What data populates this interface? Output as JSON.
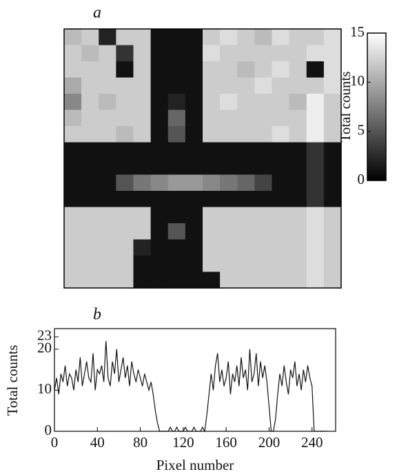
{
  "chart_data": [
    {
      "type": "heatmap",
      "title": "a",
      "colorbar_label": "Total counts",
      "colormap": "gray",
      "clim": [
        0,
        15
      ],
      "cticks": [
        0,
        5,
        10,
        15
      ],
      "z": [
        [
          11,
          12,
          2,
          12,
          12,
          1,
          1,
          1,
          12,
          13,
          12,
          11,
          13,
          12,
          12,
          13
        ],
        [
          12,
          11,
          12,
          3,
          12,
          1,
          1,
          1,
          13,
          12,
          12,
          12,
          12,
          12,
          13,
          13
        ],
        [
          12,
          12,
          12,
          1,
          12,
          1,
          1,
          1,
          12,
          12,
          11,
          12,
          13,
          12,
          1,
          13
        ],
        [
          10,
          12,
          12,
          12,
          12,
          1,
          1,
          1,
          12,
          12,
          12,
          13,
          12,
          12,
          12,
          13
        ],
        [
          8,
          12,
          11,
          12,
          12,
          1,
          2,
          1,
          12,
          13,
          12,
          12,
          12,
          11,
          14,
          12
        ],
        [
          11,
          12,
          12,
          12,
          12,
          1,
          6,
          1,
          12,
          12,
          12,
          12,
          12,
          12,
          14,
          12
        ],
        [
          12,
          12,
          12,
          11,
          12,
          1,
          5,
          1,
          12,
          12,
          12,
          12,
          13,
          12,
          14,
          12
        ],
        [
          1,
          1,
          1,
          1,
          1,
          1,
          1,
          1,
          1,
          1,
          1,
          1,
          1,
          1,
          3,
          1
        ],
        [
          1,
          1,
          1,
          1,
          1,
          1,
          1,
          1,
          1,
          1,
          1,
          1,
          1,
          1,
          3,
          1
        ],
        [
          1,
          1,
          1,
          5,
          7,
          8,
          9,
          9,
          8,
          7,
          6,
          4,
          1,
          1,
          3,
          1
        ],
        [
          1,
          1,
          1,
          1,
          1,
          1,
          1,
          1,
          1,
          1,
          1,
          1,
          1,
          1,
          3,
          1
        ],
        [
          12,
          12,
          12,
          12,
          12,
          1,
          1,
          1,
          12,
          12,
          12,
          12,
          12,
          12,
          13,
          12
        ],
        [
          12,
          12,
          12,
          12,
          12,
          1,
          5,
          1,
          12,
          12,
          12,
          12,
          12,
          12,
          13,
          12
        ],
        [
          12,
          12,
          12,
          12,
          2,
          1,
          1,
          1,
          12,
          12,
          12,
          12,
          12,
          12,
          13,
          12
        ],
        [
          12,
          12,
          12,
          12,
          1,
          1,
          1,
          1,
          12,
          12,
          12,
          12,
          12,
          12,
          13,
          12
        ],
        [
          12,
          12,
          12,
          12,
          1,
          1,
          1,
          1,
          1,
          12,
          12,
          12,
          12,
          12,
          13,
          12
        ]
      ]
    },
    {
      "type": "line",
      "title": "b",
      "xlabel": "Pixel number",
      "ylabel": "Total counts",
      "color": "#111111",
      "xlim": [
        0,
        262
      ],
      "ylim": [
        0,
        25
      ],
      "xticks": [
        0,
        40,
        80,
        120,
        160,
        200,
        240
      ],
      "yticks": [
        0,
        10,
        20,
        23
      ],
      "x": [
        0,
        2,
        4,
        6,
        8,
        10,
        12,
        14,
        16,
        18,
        20,
        22,
        24,
        26,
        28,
        30,
        32,
        34,
        36,
        38,
        40,
        42,
        44,
        46,
        48,
        50,
        52,
        54,
        56,
        58,
        60,
        62,
        64,
        66,
        68,
        70,
        72,
        74,
        76,
        78,
        80,
        82,
        84,
        86,
        88,
        90,
        92,
        94,
        96,
        98,
        100,
        102,
        104,
        106,
        108,
        110,
        112,
        114,
        116,
        118,
        120,
        122,
        124,
        126,
        128,
        130,
        132,
        134,
        136,
        138,
        140,
        142,
        144,
        146,
        148,
        150,
        152,
        154,
        156,
        158,
        160,
        162,
        164,
        166,
        168,
        170,
        172,
        174,
        176,
        178,
        180,
        182,
        184,
        186,
        188,
        190,
        192,
        194,
        196,
        198,
        200,
        202,
        204,
        206,
        208,
        210,
        212,
        214,
        216,
        218,
        220,
        222,
        224,
        226,
        228,
        230,
        232,
        234,
        236,
        238,
        240,
        242,
        244,
        246,
        248,
        250,
        252,
        254
      ],
      "values": [
        10,
        13,
        9,
        14,
        12,
        16,
        11,
        14,
        13,
        10,
        15,
        12,
        18,
        11,
        14,
        17,
        13,
        12,
        19,
        10,
        15,
        14,
        16,
        12,
        22,
        13,
        11,
        17,
        14,
        20,
        12,
        15,
        18,
        13,
        16,
        11,
        17,
        14,
        12,
        15,
        13,
        11,
        14,
        12,
        10,
        12,
        9,
        5,
        2,
        0,
        0,
        0,
        0,
        0,
        1,
        0,
        0,
        1,
        0,
        0,
        0,
        1,
        0,
        0,
        0,
        1,
        0,
        0,
        0,
        1,
        0,
        4,
        9,
        14,
        10,
        16,
        19,
        12,
        15,
        11,
        13,
        17,
        9,
        14,
        12,
        16,
        11,
        18,
        13,
        15,
        10,
        20,
        12,
        14,
        19,
        11,
        17,
        13,
        16,
        12,
        6,
        0,
        0,
        3,
        9,
        14,
        11,
        16,
        12,
        9,
        15,
        13,
        17,
        11,
        14,
        10,
        15,
        12,
        16,
        13,
        11,
        0,
        0,
        0,
        0,
        0,
        0,
        0
      ]
    }
  ]
}
